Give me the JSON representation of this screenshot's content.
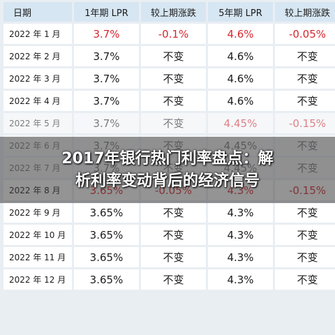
{
  "table": {
    "headers": [
      "日期",
      "1年期 LPR",
      "较上期涨跌",
      "5年期 LPR",
      "较上期涨跌"
    ],
    "rows": [
      {
        "date": "2022 年 1 月",
        "lpr1": "3.7%",
        "chg1": "-0.1%",
        "lpr5": "4.6%",
        "chg5": "-0.05%",
        "highlight": true
      },
      {
        "date": "2022 年 2 月",
        "lpr1": "3.7%",
        "chg1": "不变",
        "lpr5": "4.6%",
        "chg5": "不变",
        "highlight": false
      },
      {
        "date": "2022 年 3 月",
        "lpr1": "3.7%",
        "chg1": "不变",
        "lpr5": "4.6%",
        "chg5": "不变",
        "highlight": false
      },
      {
        "date": "2022 年 4 月",
        "lpr1": "3.7%",
        "chg1": "不变",
        "lpr5": "4.6%",
        "chg5": "不变",
        "highlight": false
      },
      {
        "date": "2022 年 5 月",
        "lpr1": "3.7%",
        "chg1": "不变",
        "lpr5": "4.45%",
        "chg5": "-0.15%",
        "highlight": true
      },
      {
        "date": "2022 年 6 月",
        "lpr1": "3.7%",
        "chg1": "不变",
        "lpr5": "4.45%",
        "chg5": "不变",
        "highlight": false
      },
      {
        "date": "2022 年 7 月",
        "lpr1": "3.7%",
        "chg1": "不变",
        "lpr5": "4.45%",
        "chg5": "不变",
        "highlight": false
      },
      {
        "date": "2022 年 8 月",
        "lpr1": "3.65%",
        "chg1": "-0.05%",
        "lpr5": "4.3%",
        "chg5": "-0.15%",
        "highlight": true
      },
      {
        "date": "2022 年 9 月",
        "lpr1": "3.65%",
        "chg1": "不变",
        "lpr5": "4.3%",
        "chg5": "不变",
        "highlight": false
      },
      {
        "date": "2022 年 10 月",
        "lpr1": "3.65%",
        "chg1": "不变",
        "lpr5": "4.3%",
        "chg5": "不变",
        "highlight": false
      },
      {
        "date": "2022 年 11 月",
        "lpr1": "3.65%",
        "chg1": "不变",
        "lpr5": "4.3%",
        "chg5": "不变",
        "highlight": false
      },
      {
        "date": "2022 年 12 月",
        "lpr1": "3.65%",
        "chg1": "不变",
        "lpr5": "4.3%",
        "chg5": "不变",
        "highlight": false
      }
    ]
  },
  "overlay": {
    "line1": "2017年银行热门利率盘点：解",
    "line2": "析利率变动背后的经济信号"
  }
}
